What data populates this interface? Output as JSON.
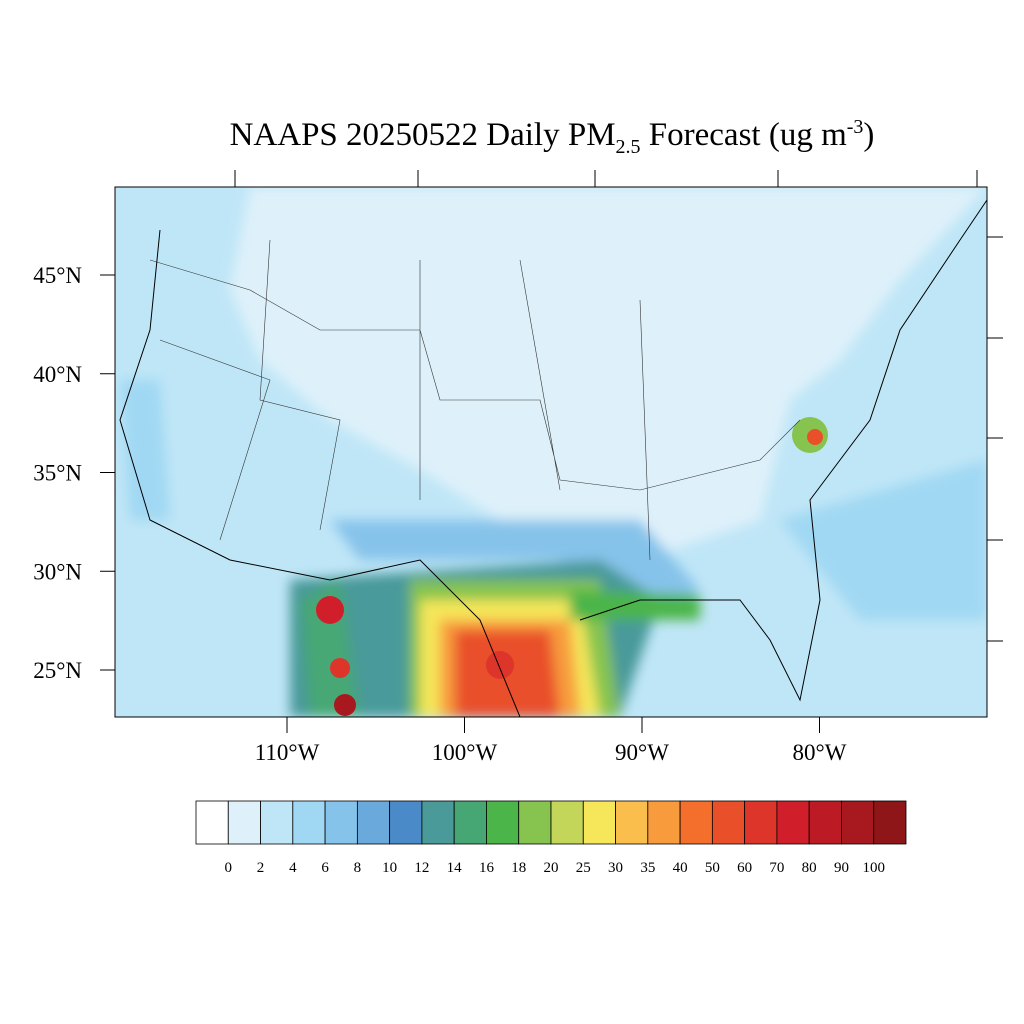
{
  "title": {
    "main": "NAAPS 20250522 Daily PM",
    "sub": "2.5",
    "rest": " Forecast (ug m",
    "sup": "-3",
    "end": ")"
  },
  "lat_labels": [
    {
      "value": 45,
      "label": "45°N"
    },
    {
      "value": 40,
      "label": "40°N"
    },
    {
      "value": 35,
      "label": "35°N"
    },
    {
      "value": 30,
      "label": "30°N"
    },
    {
      "value": 25,
      "label": "25°N"
    }
  ],
  "lon_labels": [
    {
      "value": -110,
      "label": "110°W"
    },
    {
      "value": -100,
      "label": "100°W"
    },
    {
      "value": -90,
      "label": "90°W"
    },
    {
      "value": -80,
      "label": "80°W"
    }
  ],
  "colorbar": {
    "levels": [
      0,
      2,
      4,
      6,
      8,
      10,
      12,
      14,
      16,
      18,
      20,
      25,
      30,
      35,
      40,
      50,
      60,
      70,
      80,
      90,
      100
    ],
    "colors": [
      "#ffffff",
      "#def1fa",
      "#bfe6f7",
      "#a0d8f3",
      "#86c3ea",
      "#6aa9dc",
      "#4b8ac8",
      "#4a9a9a",
      "#46a774",
      "#4bb54a",
      "#86c44f",
      "#c3d65a",
      "#f5e65a",
      "#f9be4b",
      "#f89b3c",
      "#f36f2b",
      "#e9502a",
      "#de352a",
      "#d01f2a",
      "#bc1a25",
      "#a8181f",
      "#8e1518"
    ]
  }
}
